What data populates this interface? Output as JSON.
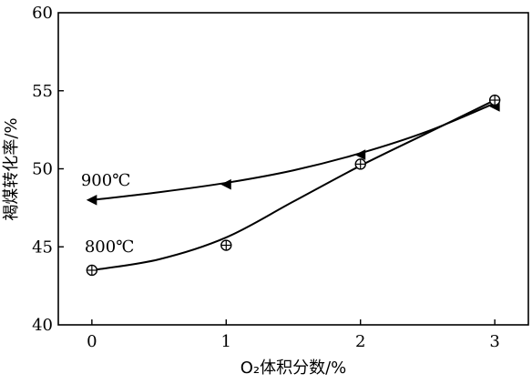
{
  "chart_data": {
    "type": "line",
    "xlabel": "O₂体积分数/%",
    "ylabel": "褐煤转化率/%",
    "xlim": [
      -0.25,
      3.25
    ],
    "ylim": [
      40,
      60
    ],
    "xticks": [
      0,
      1,
      2,
      3
    ],
    "yticks": [
      40,
      45,
      50,
      55,
      60
    ],
    "grid": false,
    "series": [
      {
        "name": "900℃",
        "marker": "triangle-left",
        "x": [
          0,
          1,
          2,
          3
        ],
        "y": [
          48.0,
          49.0,
          50.9,
          54.0
        ],
        "curve_x": [
          0,
          0.5,
          1,
          1.5,
          2,
          2.5,
          3
        ],
        "curve_y": [
          48.0,
          48.5,
          49.1,
          49.9,
          51.0,
          52.4,
          54.2
        ]
      },
      {
        "name": "800℃",
        "marker": "circle-plus",
        "x": [
          0,
          1,
          2,
          3
        ],
        "y": [
          43.5,
          45.1,
          50.3,
          54.4
        ],
        "curve_x": [
          0,
          0.5,
          1,
          1.5,
          2,
          2.5,
          3
        ],
        "curve_y": [
          43.5,
          44.2,
          45.6,
          47.9,
          50.2,
          52.3,
          54.4
        ]
      }
    ]
  }
}
